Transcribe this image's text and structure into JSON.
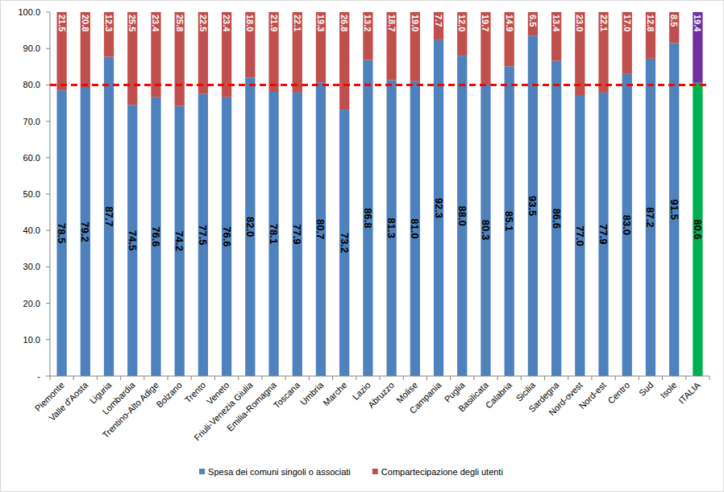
{
  "chart_data": {
    "type": "bar",
    "stacked": true,
    "data_labels": true,
    "grid": false,
    "legend": "bottom",
    "categories": [
      "Piemonte",
      "Valle d'Aosta",
      "Liguria",
      "Lombardia",
      "Trentino-Alto Adige",
      "Bolzano",
      "Trento",
      "Veneto",
      "Friuli-Venezia Giulia",
      "Emilia-Romagna",
      "Toscana",
      "Umbria",
      "Marche",
      "Lazio",
      "Abruzzo",
      "Molise",
      "Campania",
      "Puglia",
      "Basilicata",
      "Calabria",
      "Sicilia",
      "Sardegna",
      "Nord-ovest",
      "Nord-est",
      "Centro",
      "Sud",
      "Isole",
      "ITALIA"
    ],
    "series": [
      {
        "name": "Spesa dei comuni singoli o associati",
        "color": "#4f81bd",
        "colors": [
          "#4f81bd",
          "#4f81bd",
          "#4f81bd",
          "#4f81bd",
          "#4f81bd",
          "#4f81bd",
          "#4f81bd",
          "#4f81bd",
          "#4f81bd",
          "#4f81bd",
          "#4f81bd",
          "#4f81bd",
          "#4f81bd",
          "#4f81bd",
          "#4f81bd",
          "#4f81bd",
          "#4f81bd",
          "#4f81bd",
          "#4f81bd",
          "#4f81bd",
          "#4f81bd",
          "#4f81bd",
          "#4f81bd",
          "#4f81bd",
          "#4f81bd",
          "#4f81bd",
          "#4f81bd",
          "#00b050"
        ],
        "values": [
          78.5,
          79.2,
          87.7,
          74.5,
          76.6,
          74.2,
          77.5,
          76.6,
          82.0,
          78.1,
          77.9,
          80.7,
          73.2,
          86.8,
          81.3,
          81.0,
          92.3,
          88.0,
          80.3,
          85.1,
          93.5,
          86.6,
          77.0,
          77.9,
          83.0,
          87.2,
          91.5,
          80.6
        ],
        "value_labels": [
          "78.5",
          "79.2",
          "87.7",
          "74.5",
          "76.6",
          "74.2",
          "77.5",
          "76.6",
          "82.0",
          "78.1",
          "77.9",
          "80.7",
          "73.2",
          "86.8",
          "81.3",
          "81.0",
          "92.3",
          "88.0",
          "80.3",
          "85.1",
          "93.5",
          "86.6",
          "77.0",
          "77.9",
          "83.0",
          "87.2",
          "91.5",
          "80.6"
        ]
      },
      {
        "name": "Compartecipazione degli utenti",
        "color": "#c0504d",
        "colors": [
          "#c0504d",
          "#c0504d",
          "#c0504d",
          "#c0504d",
          "#c0504d",
          "#c0504d",
          "#c0504d",
          "#c0504d",
          "#c0504d",
          "#c0504d",
          "#c0504d",
          "#c0504d",
          "#c0504d",
          "#c0504d",
          "#c0504d",
          "#c0504d",
          "#c0504d",
          "#c0504d",
          "#c0504d",
          "#c0504d",
          "#c0504d",
          "#c0504d",
          "#c0504d",
          "#c0504d",
          "#c0504d",
          "#c0504d",
          "#c0504d",
          "#7030a0"
        ],
        "values": [
          21.5,
          20.8,
          12.3,
          25.5,
          23.4,
          25.8,
          22.5,
          23.4,
          18.0,
          21.9,
          22.1,
          19.3,
          26.8,
          13.2,
          18.7,
          19.0,
          7.7,
          12.0,
          19.7,
          14.9,
          6.5,
          13.4,
          23.0,
          22.1,
          17.0,
          12.8,
          8.5,
          19.4
        ],
        "value_labels": [
          "21.5",
          "20.8",
          "12.3",
          "25.5",
          "23.4",
          "25.8",
          "22.5",
          "23.4",
          "18.0",
          "21.9",
          "22.1",
          "19.3",
          "26.8",
          "13.2",
          "18.7",
          "19.0",
          "7.7",
          "12.0",
          "19.7",
          "14.9",
          "6.5",
          "13.4",
          "23.0",
          "22.1",
          "17.0",
          "12.8",
          "8.5",
          "19.4"
        ]
      }
    ],
    "ylim": [
      0,
      100
    ],
    "yticks": [
      {
        "value": 0,
        "label": "-"
      },
      {
        "value": 10,
        "label": "10.0"
      },
      {
        "value": 20,
        "label": "20.0"
      },
      {
        "value": 30,
        "label": "30.0"
      },
      {
        "value": 40,
        "label": "40.0"
      },
      {
        "value": 50,
        "label": "50.0"
      },
      {
        "value": 60,
        "label": "60.0"
      },
      {
        "value": 70,
        "label": "70.0"
      },
      {
        "value": 80,
        "label": "80.0"
      },
      {
        "value": 90,
        "label": "90.0"
      },
      {
        "value": 100,
        "label": "100.0"
      }
    ],
    "reference_line": {
      "value": 80,
      "color": "#ff0000",
      "line_style": "dashed"
    }
  }
}
